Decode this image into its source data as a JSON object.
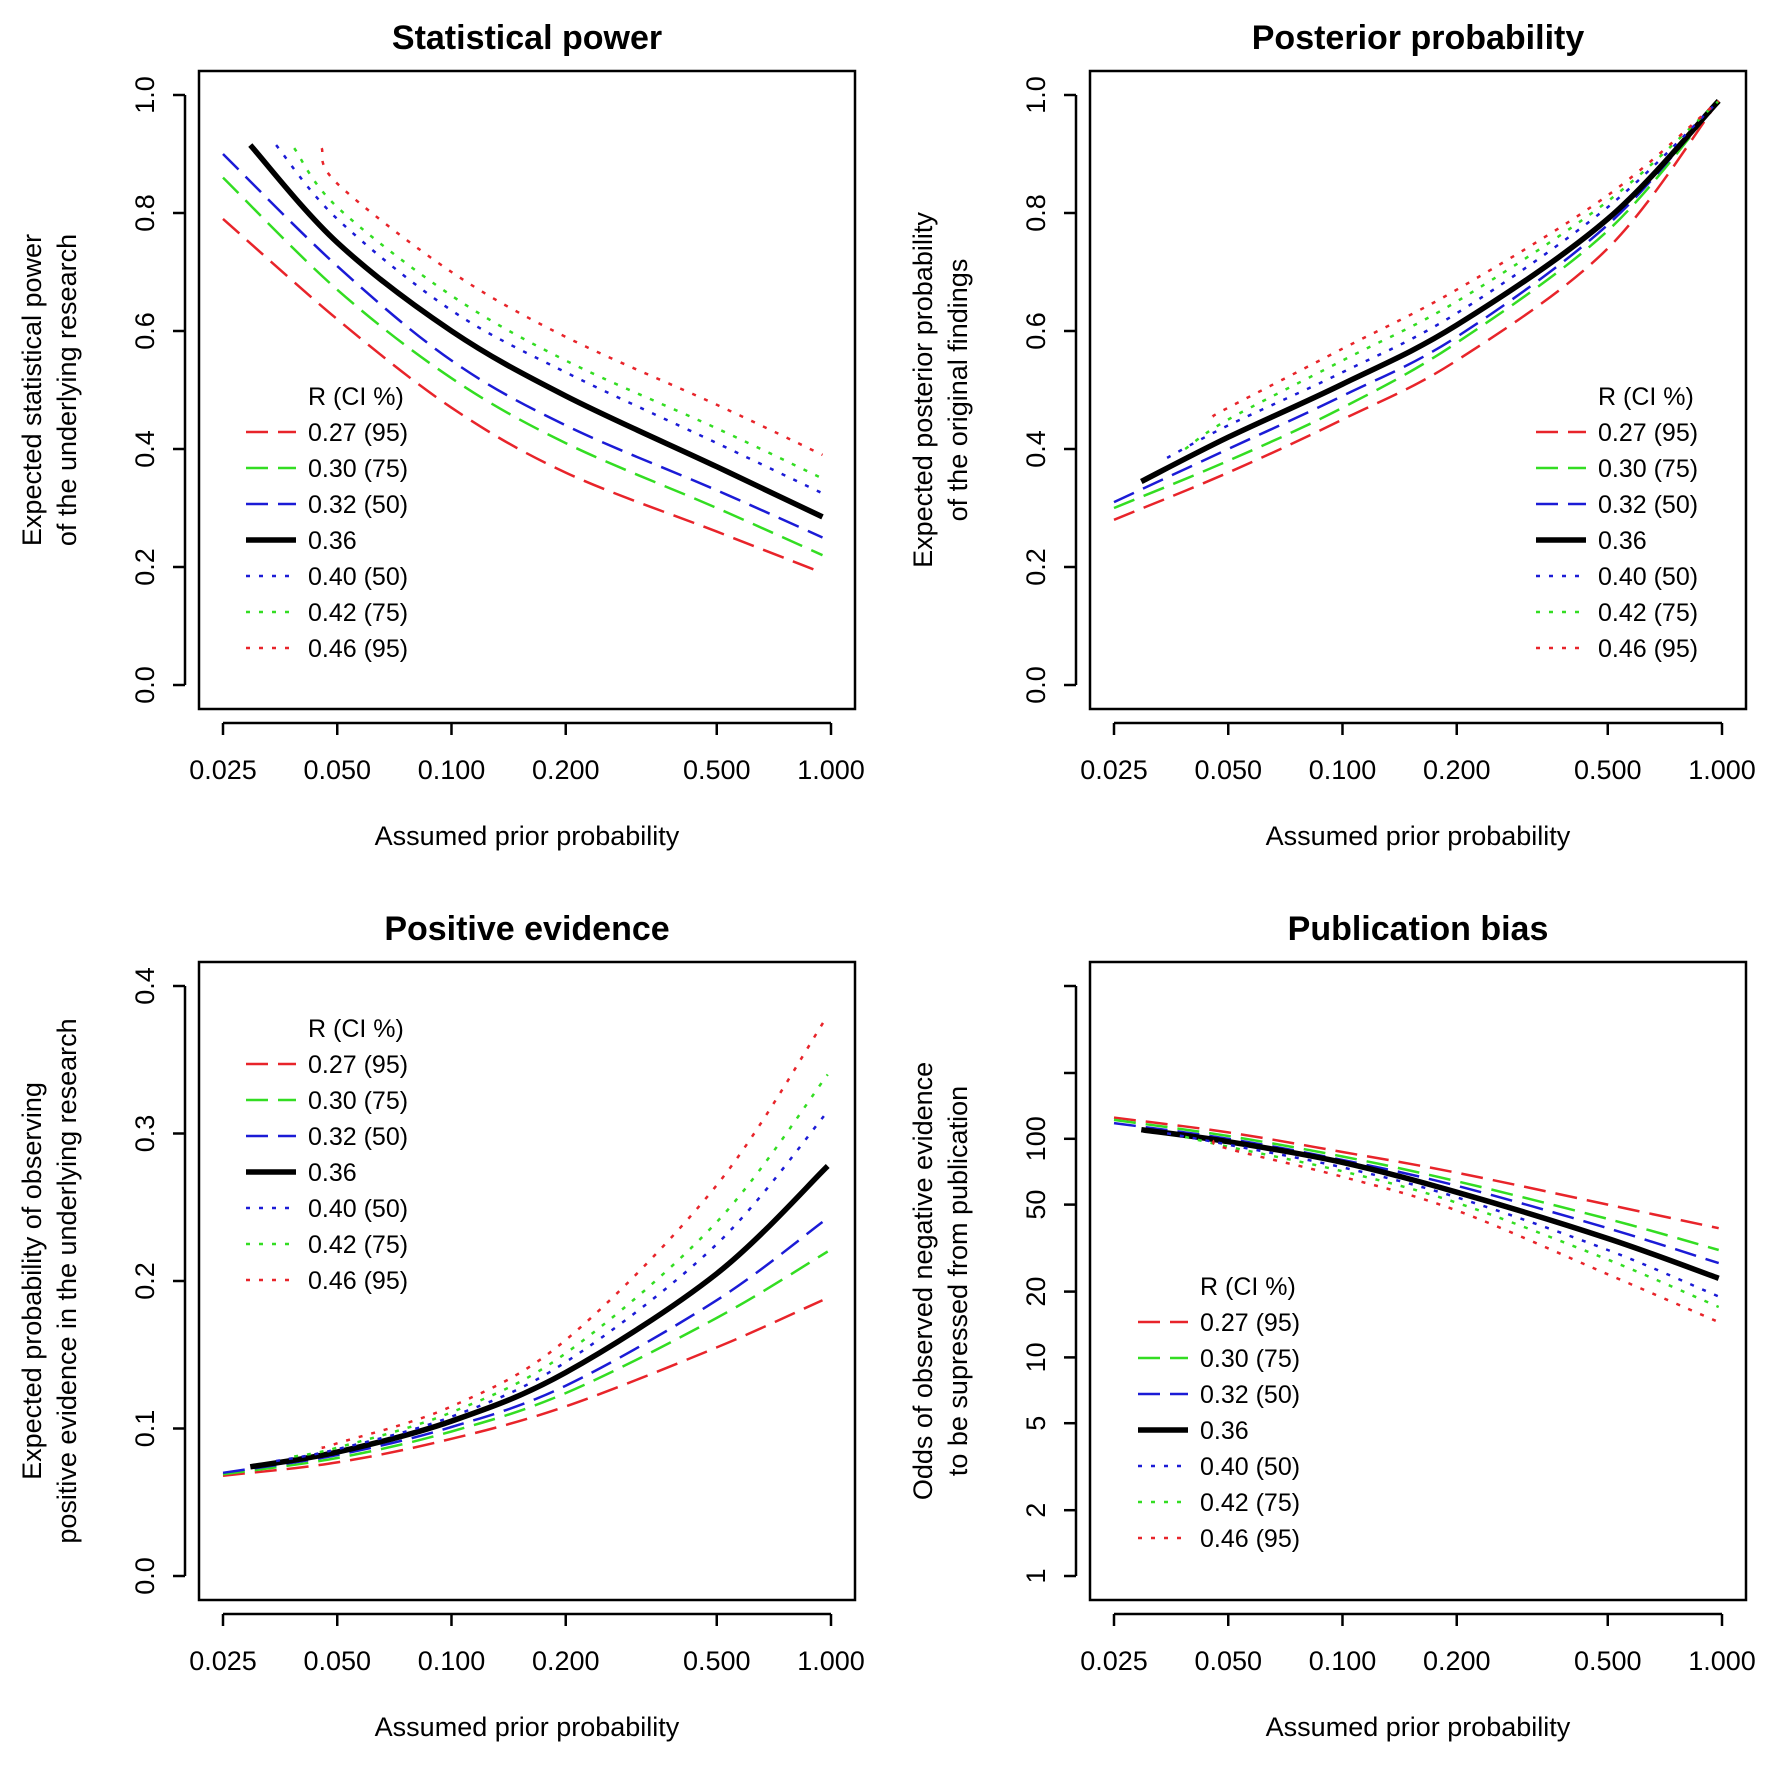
{
  "legend": {
    "title": "R (CI %)",
    "entries": [
      {
        "label": "0.27 (95)",
        "color": "#e8242a",
        "style": "long-dash"
      },
      {
        "label": "0.30 (75)",
        "color": "#33dd22",
        "style": "long-dash"
      },
      {
        "label": "0.32 (50)",
        "color": "#1b1bd6",
        "style": "long-dash"
      },
      {
        "label": "0.36",
        "color": "#000000",
        "style": "solid"
      },
      {
        "label": "0.40 (50)",
        "color": "#1b1bd6",
        "style": "dotted"
      },
      {
        "label": "0.42 (75)",
        "color": "#33dd22",
        "style": "dotted"
      },
      {
        "label": "0.46 (95)",
        "color": "#e8242a",
        "style": "dotted"
      }
    ]
  },
  "chart_data": [
    {
      "type": "line",
      "title": "Statistical power",
      "xlabel": "Assumed prior probability",
      "ylabel": [
        "Expected statistical power",
        "of the underlying research"
      ],
      "xscale": "log",
      "xlim": [
        0.025,
        1.0
      ],
      "ylim": [
        0.0,
        1.0
      ],
      "xticks": [
        0.025,
        0.05,
        0.1,
        0.2,
        0.5,
        1.0
      ],
      "xticklabels": [
        "0.025",
        "0.050",
        "0.100",
        "0.200",
        "0.500",
        "1.000"
      ],
      "yticks": [
        0.0,
        0.2,
        0.4,
        0.6,
        0.8,
        1.0
      ],
      "yticklabels": [
        "0.0",
        "0.2",
        "0.4",
        "0.6",
        "0.8",
        "1.0"
      ],
      "legend_position": "bottom-left",
      "series": [
        {
          "name": "0.27 (95)",
          "x": [
            0.025,
            0.05,
            0.1,
            0.2,
            0.5,
            0.95
          ],
          "y": [
            0.79,
            0.62,
            0.47,
            0.36,
            0.26,
            0.19
          ]
        },
        {
          "name": "0.30 (75)",
          "x": [
            0.025,
            0.05,
            0.1,
            0.2,
            0.5,
            0.95
          ],
          "y": [
            0.86,
            0.67,
            0.52,
            0.41,
            0.3,
            0.22
          ]
        },
        {
          "name": "0.32 (50)",
          "x": [
            0.025,
            0.05,
            0.1,
            0.2,
            0.5,
            0.95
          ],
          "y": [
            0.9,
            0.71,
            0.55,
            0.44,
            0.33,
            0.25
          ]
        },
        {
          "name": "0.36",
          "x": [
            0.0295,
            0.05,
            0.1,
            0.2,
            0.5,
            0.95
          ],
          "y": [
            0.915,
            0.75,
            0.6,
            0.49,
            0.37,
            0.285
          ]
        },
        {
          "name": "0.40 (50)",
          "x": [
            0.0345,
            0.05,
            0.1,
            0.2,
            0.5,
            0.95
          ],
          "y": [
            0.915,
            0.79,
            0.635,
            0.53,
            0.41,
            0.325
          ]
        },
        {
          "name": "0.42 (75)",
          "x": [
            0.0385,
            0.05,
            0.1,
            0.2,
            0.5,
            0.95
          ],
          "y": [
            0.91,
            0.81,
            0.66,
            0.55,
            0.435,
            0.35
          ]
        },
        {
          "name": "0.46 (95)",
          "x": [
            0.0455,
            0.05,
            0.1,
            0.2,
            0.5,
            0.95
          ],
          "y": [
            0.91,
            0.85,
            0.7,
            0.59,
            0.475,
            0.39
          ]
        }
      ]
    },
    {
      "type": "line",
      "title": "Posterior probability",
      "xlabel": "Assumed prior probability",
      "ylabel": [
        "Expected posterior probability",
        "of the original findings"
      ],
      "xscale": "log",
      "xlim": [
        0.025,
        1.0
      ],
      "ylim": [
        0.0,
        1.0
      ],
      "xticks": [
        0.025,
        0.05,
        0.1,
        0.2,
        0.5,
        1.0
      ],
      "xticklabels": [
        "0.025",
        "0.050",
        "0.100",
        "0.200",
        "0.500",
        "1.000"
      ],
      "yticks": [
        0.0,
        0.2,
        0.4,
        0.6,
        0.8,
        1.0
      ],
      "yticklabels": [
        "0.0",
        "0.2",
        "0.4",
        "0.6",
        "0.8",
        "1.0"
      ],
      "legend_position": "bottom-right",
      "series": [
        {
          "name": "0.27 (95)",
          "x": [
            0.025,
            0.05,
            0.1,
            0.2,
            0.5,
            0.98
          ],
          "y": [
            0.28,
            0.36,
            0.45,
            0.55,
            0.74,
            0.99
          ]
        },
        {
          "name": "0.30 (75)",
          "x": [
            0.025,
            0.05,
            0.1,
            0.2,
            0.5,
            0.98
          ],
          "y": [
            0.3,
            0.38,
            0.47,
            0.58,
            0.77,
            0.99
          ]
        },
        {
          "name": "0.32 (50)",
          "x": [
            0.025,
            0.05,
            0.1,
            0.2,
            0.5,
            0.98
          ],
          "y": [
            0.31,
            0.4,
            0.49,
            0.59,
            0.78,
            0.99
          ]
        },
        {
          "name": "0.36",
          "x": [
            0.0295,
            0.05,
            0.1,
            0.2,
            0.5,
            0.98
          ],
          "y": [
            0.345,
            0.42,
            0.51,
            0.61,
            0.79,
            0.99
          ]
        },
        {
          "name": "0.40 (50)",
          "x": [
            0.0345,
            0.05,
            0.1,
            0.2,
            0.5,
            0.98
          ],
          "y": [
            0.385,
            0.44,
            0.53,
            0.63,
            0.81,
            0.99
          ]
        },
        {
          "name": "0.42 (75)",
          "x": [
            0.0385,
            0.05,
            0.1,
            0.2,
            0.5,
            0.98
          ],
          "y": [
            0.4,
            0.45,
            0.55,
            0.65,
            0.82,
            0.99
          ]
        },
        {
          "name": "0.46 (95)",
          "x": [
            0.0455,
            0.05,
            0.1,
            0.2,
            0.5,
            0.98
          ],
          "y": [
            0.455,
            0.47,
            0.57,
            0.67,
            0.83,
            0.99
          ]
        }
      ]
    },
    {
      "type": "line",
      "title": "Positive evidence",
      "xlabel": "Assumed prior probability",
      "ylabel": [
        "Expected probability of observing",
        "positive evidence in the underlying research"
      ],
      "xscale": "log",
      "xlim": [
        0.025,
        1.0
      ],
      "ylim": [
        0.0,
        0.4
      ],
      "xticks": [
        0.025,
        0.05,
        0.1,
        0.2,
        0.5,
        1.0
      ],
      "xticklabels": [
        "0.025",
        "0.050",
        "0.100",
        "0.200",
        "0.500",
        "1.000"
      ],
      "yticks": [
        0.0,
        0.1,
        0.2,
        0.3,
        0.4
      ],
      "yticklabels": [
        "0.0",
        "0.1",
        "0.2",
        "0.3",
        "0.4"
      ],
      "legend_position": "top-left",
      "series": [
        {
          "name": "0.27 (95)",
          "x": [
            0.025,
            0.05,
            0.1,
            0.2,
            0.5,
            0.95
          ],
          "y": [
            0.068,
            0.077,
            0.093,
            0.115,
            0.155,
            0.187
          ]
        },
        {
          "name": "0.30 (75)",
          "x": [
            0.025,
            0.05,
            0.1,
            0.2,
            0.5,
            0.98
          ],
          "y": [
            0.069,
            0.08,
            0.098,
            0.124,
            0.175,
            0.22
          ]
        },
        {
          "name": "0.32 (50)",
          "x": [
            0.025,
            0.05,
            0.1,
            0.2,
            0.5,
            0.95
          ],
          "y": [
            0.07,
            0.082,
            0.101,
            0.129,
            0.187,
            0.24
          ]
        },
        {
          "name": "0.36",
          "x": [
            0.0295,
            0.05,
            0.1,
            0.2,
            0.5,
            0.98
          ],
          "y": [
            0.074,
            0.084,
            0.105,
            0.138,
            0.205,
            0.278
          ]
        },
        {
          "name": "0.40 (50)",
          "x": [
            0.0345,
            0.05,
            0.1,
            0.2,
            0.5,
            0.98
          ],
          "y": [
            0.078,
            0.086,
            0.108,
            0.145,
            0.225,
            0.315
          ]
        },
        {
          "name": "0.42 (75)",
          "x": [
            0.0385,
            0.05,
            0.1,
            0.2,
            0.5,
            0.98
          ],
          "y": [
            0.081,
            0.087,
            0.111,
            0.151,
            0.24,
            0.34
          ]
        },
        {
          "name": "0.46 (95)",
          "x": [
            0.0455,
            0.05,
            0.1,
            0.2,
            0.5,
            0.98
          ],
          "y": [
            0.087,
            0.09,
            0.115,
            0.16,
            0.265,
            0.38
          ]
        }
      ]
    },
    {
      "type": "line",
      "title": "Publication bias",
      "xlabel": "Assumed prior probability",
      "ylabel": [
        "Odds of observed negative evidence",
        "to be supressed from publication"
      ],
      "xscale": "log",
      "yscale": "log",
      "xlim": [
        0.025,
        1.0
      ],
      "ylim": [
        1,
        500
      ],
      "xticks": [
        0.025,
        0.05,
        0.1,
        0.2,
        0.5,
        1.0
      ],
      "xticklabels": [
        "0.025",
        "0.050",
        "0.100",
        "0.200",
        "0.500",
        "1.000"
      ],
      "yticks": [
        1,
        2,
        5,
        10,
        20,
        50,
        100,
        200,
        500
      ],
      "yticklabels": [
        "1",
        "2",
        "5",
        "10",
        "20",
        "50",
        "100",
        "",
        ""
      ],
      "legend_position": "bottom-left",
      "series": [
        {
          "name": "0.27 (95)",
          "x": [
            0.025,
            0.05,
            0.1,
            0.2,
            0.5,
            0.98
          ],
          "y": [
            125,
            107,
            87,
            70,
            50,
            39
          ]
        },
        {
          "name": "0.30 (75)",
          "x": [
            0.025,
            0.05,
            0.1,
            0.2,
            0.5,
            0.98
          ],
          "y": [
            122,
            103,
            83,
            64,
            43,
            31
          ]
        },
        {
          "name": "0.32 (50)",
          "x": [
            0.025,
            0.05,
            0.1,
            0.2,
            0.5,
            0.98
          ],
          "y": [
            118,
            100,
            80,
            61,
            39,
            27
          ]
        },
        {
          "name": "0.36",
          "x": [
            0.0295,
            0.05,
            0.1,
            0.2,
            0.5,
            0.98
          ],
          "y": [
            110,
            97,
            78,
            57,
            35,
            23
          ]
        },
        {
          "name": "0.40 (50)",
          "x": [
            0.0345,
            0.05,
            0.1,
            0.2,
            0.5,
            0.98
          ],
          "y": [
            106,
            94,
            74,
            54,
            31,
            19
          ]
        },
        {
          "name": "0.42 (75)",
          "x": [
            0.0385,
            0.05,
            0.1,
            0.2,
            0.5,
            0.98
          ],
          "y": [
            102,
            92,
            71,
            51,
            28,
            17
          ]
        },
        {
          "name": "0.46 (95)",
          "x": [
            0.0455,
            0.05,
            0.1,
            0.2,
            0.5,
            0.98
          ],
          "y": [
            98,
            90,
            67,
            47,
            24,
            14.5
          ]
        }
      ]
    }
  ]
}
